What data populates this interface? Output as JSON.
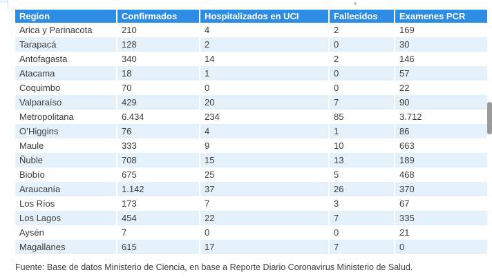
{
  "colors": {
    "header_bg": "#2e8ce2",
    "header_text": "#ffffff",
    "row_alt_bg": "#e4f1fb",
    "row_bg": "#ffffff",
    "body_text": "#3c3c3c",
    "scrollbar_thumb": "#9b9b9b"
  },
  "chart_data": {
    "type": "table",
    "columns": [
      "Region",
      "Confirmados",
      "Hospitalizados en UCI",
      "Fallecidos",
      "Examenes PCR"
    ],
    "rows": [
      [
        "Arica y Parinacota",
        "210",
        "4",
        "2",
        "169"
      ],
      [
        "Tarapacá",
        "128",
        "2",
        "0",
        "30"
      ],
      [
        "Antofagasta",
        "340",
        "14",
        "2",
        "146"
      ],
      [
        "Atacama",
        "18",
        "1",
        "0",
        "57"
      ],
      [
        "Coquimbo",
        "70",
        "0",
        "0",
        "22"
      ],
      [
        "Valparaíso",
        "429",
        "20",
        "7",
        "90"
      ],
      [
        "Metropolitana",
        "6.434",
        "234",
        "85",
        "3.712"
      ],
      [
        "O’Higgins",
        "76",
        "4",
        "1",
        "86"
      ],
      [
        "Maule",
        "333",
        "9",
        "10",
        "663"
      ],
      [
        "Ñuble",
        "708",
        "15",
        "13",
        "189"
      ],
      [
        "Biobío",
        "675",
        "25",
        "5",
        "468"
      ],
      [
        "Araucanía",
        "1.142",
        "37",
        "26",
        "370"
      ],
      [
        "Los Ríos",
        "173",
        "7",
        "3",
        "67"
      ],
      [
        "Los Lagos",
        "454",
        "22",
        "7",
        "335"
      ],
      [
        "Aysén",
        "7",
        "0",
        "0",
        "21"
      ],
      [
        "Magallanes",
        "615",
        "17",
        "7",
        "0"
      ]
    ],
    "title": "",
    "legend": "none",
    "grid": "row-stripes"
  },
  "footer": {
    "source_text": "Fuente: Base de datos Ministerio de Ciencia, en base a Reporte Diario Coronavirus Ministerio de Salud."
  }
}
